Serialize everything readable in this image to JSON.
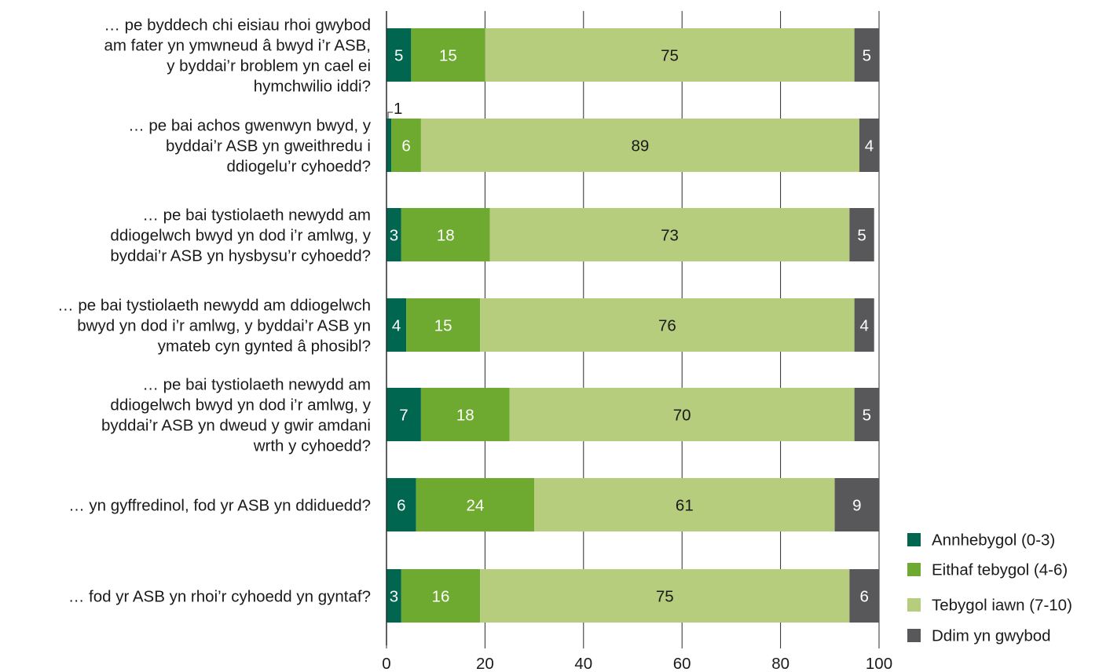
{
  "chart_data": {
    "type": "bar",
    "orientation": "horizontal",
    "stacked": true,
    "categories": [
      [
        "… pe byddech chi eisiau rhoi gwybod",
        "am fater yn ymwneud â bwyd i’r ASB,",
        "y byddai’r broblem yn cael ei",
        "hymchwilio iddi?"
      ],
      [
        "… pe bai achos gwenwyn bwyd, y",
        "byddai’r ASB yn gweithredu i",
        "ddiogelu’r cyhoedd?"
      ],
      [
        "… pe bai tystiolaeth newydd am",
        "ddiogelwch bwyd yn dod i’r amlwg, y",
        "byddai’r ASB yn hysbysu’r cyhoedd?"
      ],
      [
        "… pe bai tystiolaeth newydd am ddiogelwch",
        "bwyd yn dod i’r amlwg, y byddai’r ASB yn",
        "ymateb cyn gynted â phosibl?"
      ],
      [
        "… pe bai tystiolaeth newydd am",
        "ddiogelwch bwyd yn dod i’r amlwg, y",
        "byddai’r ASB yn dweud y gwir amdani",
        "wrth y cyhoedd?"
      ],
      [
        "… yn gyffredinol, fod yr ASB yn ddiduedd?"
      ],
      [
        "… fod yr ASB yn rhoi’r cyhoedd yn gyntaf?"
      ]
    ],
    "series": [
      {
        "name": "Annhebygol (0-3)",
        "color": "#00664f",
        "label_color": "#ffffff",
        "values": [
          5,
          1,
          3,
          4,
          7,
          6,
          3
        ]
      },
      {
        "name": "Eithaf tebygol (4-6)",
        "color": "#6daa2f",
        "label_color": "#ffffff",
        "values": [
          15,
          6,
          18,
          15,
          18,
          24,
          16
        ]
      },
      {
        "name": "Tebygol iawn (7-10)",
        "color": "#b6cd7d",
        "label_color": "#1a1a1a",
        "values": [
          75,
          89,
          73,
          76,
          70,
          61,
          75
        ]
      },
      {
        "name": "Ddim yn gwybod",
        "color": "#58585a",
        "label_color": "#ffffff",
        "values": [
          5,
          4,
          5,
          4,
          5,
          9,
          6
        ]
      }
    ],
    "xlim": [
      0,
      100
    ],
    "xticks": [
      0,
      20,
      40,
      60,
      80,
      100
    ],
    "grid": true,
    "legend_position": "bottom-right",
    "title": "",
    "xlabel": "",
    "ylabel": ""
  }
}
